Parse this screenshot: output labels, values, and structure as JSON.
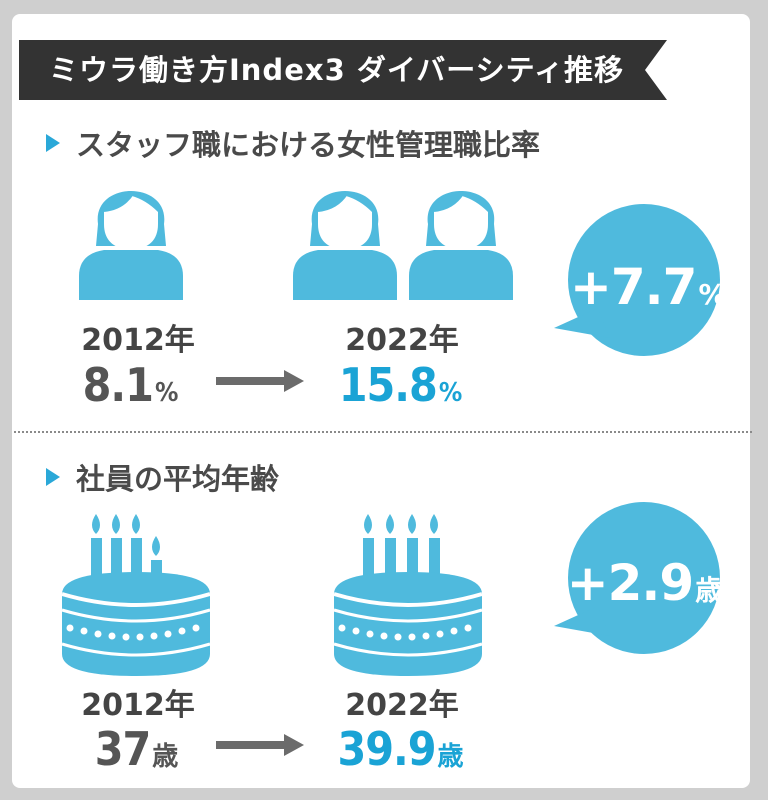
{
  "title": "ミウラ働き方Index3 ダイバーシティ推移",
  "section1": {
    "heading": "スタッフ職における女性管理職比率",
    "before": {
      "year": "2012年",
      "value": "8.1",
      "unit": "%"
    },
    "after": {
      "year": "2022年",
      "value": "15.8",
      "unit": "%"
    },
    "change": {
      "value": "+7.7",
      "unit": "%"
    }
  },
  "section2": {
    "heading": "社員の平均年齢",
    "before": {
      "year": "2012年",
      "value": "37",
      "unit": "歳"
    },
    "after": {
      "year": "2022年",
      "value": "39.9",
      "unit": "歳"
    },
    "change": {
      "value": "+2.9",
      "unit": "歳"
    }
  },
  "colors": {
    "accent": "#4fbadd",
    "accent_text": "#1aa3d5",
    "banner": "#333333",
    "arrow": "#6b6b6b"
  },
  "icons": {
    "woman": "woman-icon",
    "cake": "birthday-cake-icon",
    "arrow": "arrow-right-icon",
    "bubble": "speech-bubble"
  }
}
